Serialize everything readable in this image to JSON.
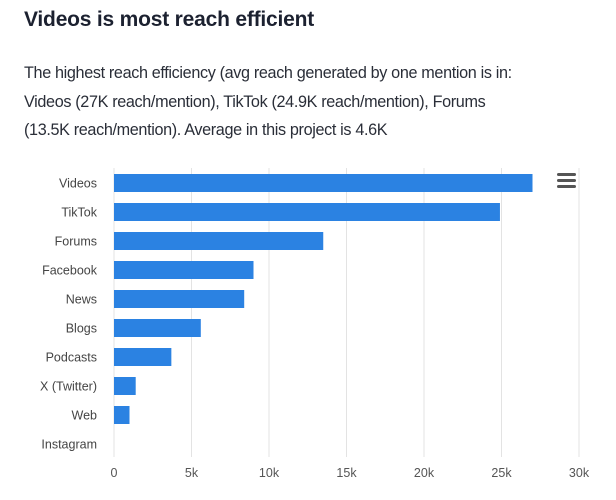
{
  "title": "Videos is most reach efficient",
  "description_lines": [
    "The highest reach efficiency (avg reach generated by one mention is in:",
    "Videos (27K reach/mention), TikTok (24.9K reach/mention), Forums",
    "(13.5K reach/mention). Average in this project is 4.6K"
  ],
  "menu_icon": "hamburger-menu-icon",
  "chart_data": {
    "type": "bar",
    "orientation": "horizontal",
    "categories": [
      "Videos",
      "TikTok",
      "Forums",
      "Facebook",
      "News",
      "Blogs",
      "Podcasts",
      "X (Twitter)",
      "Web",
      "Instagram"
    ],
    "values": [
      27000,
      24900,
      13500,
      9000,
      8400,
      5600,
      3700,
      1400,
      1000,
      0
    ],
    "xlim": [
      0,
      30000
    ],
    "xticks": [
      0,
      5000,
      10000,
      15000,
      20000,
      25000,
      30000
    ],
    "xtick_labels": [
      "0",
      "5k",
      "10k",
      "15k",
      "20k",
      "25k",
      "30k"
    ],
    "grid": true,
    "bar_color": "#2b82e2",
    "title": "",
    "xlabel": "",
    "ylabel": ""
  }
}
